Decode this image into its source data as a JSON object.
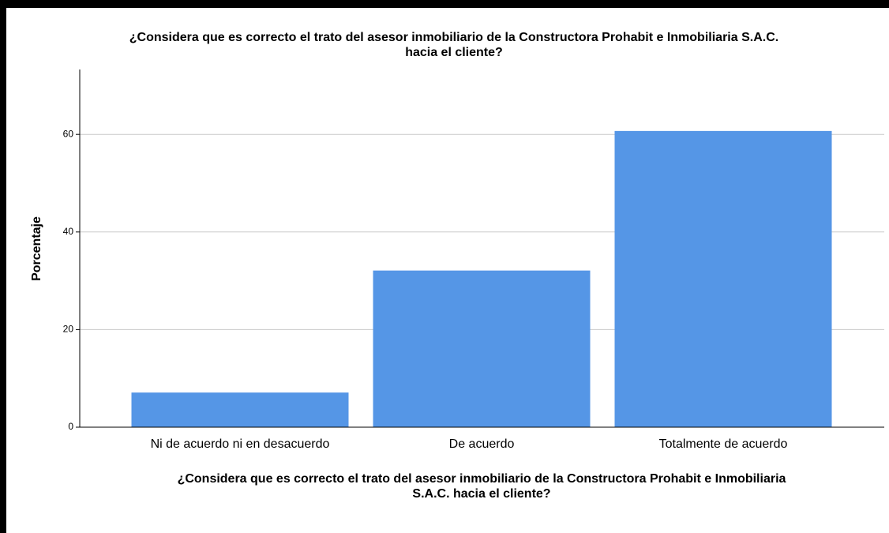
{
  "chart_data": {
    "type": "bar",
    "title": [
      "¿Considera que es correcto el trato del asesor inmobiliario de la Constructora Prohabit e Inmobiliaria S.A.C.",
      "hacia el cliente?"
    ],
    "x_label": [
      "¿Considera que es correcto el trato del asesor inmobiliario de la Constructora Prohabit e Inmobiliaria",
      "S.A.C. hacia el cliente?"
    ],
    "y_label": "Porcentaje",
    "categories": [
      "Ni de acuerdo ni en desacuerdo",
      "De acuerdo",
      "Totalmente de acuerdo"
    ],
    "values": [
      7.1,
      32.1,
      60.7
    ],
    "color": "#5596e6",
    "ylim": [
      0,
      73.3
    ],
    "yticks": [
      0,
      20,
      40,
      60
    ],
    "grid": true
  }
}
